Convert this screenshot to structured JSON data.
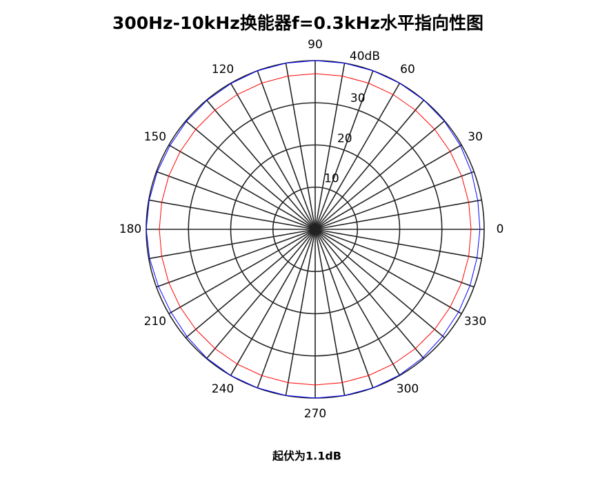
{
  "chart_data": {
    "type": "polar",
    "title": "300Hz-10kHz换能器f=0.3kHz水平指向性图",
    "annotation": "起伏为1.1dB",
    "x": [
      0,
      10,
      20,
      30,
      40,
      50,
      60,
      70,
      80,
      90,
      100,
      110,
      120,
      130,
      140,
      150,
      160,
      170,
      180,
      190,
      200,
      210,
      220,
      230,
      240,
      250,
      260,
      270,
      280,
      290,
      300,
      310,
      320,
      330,
      340,
      350,
      360
    ],
    "series": [
      {
        "color": "#ff0000",
        "values": [
          36.9,
          36.9,
          36.9,
          36.9,
          36.9,
          36.9,
          36.9,
          36.9,
          36.9,
          36.9,
          36.9,
          36.9,
          36.9,
          36.9,
          36.9,
          36.9,
          36.9,
          36.9,
          36.9,
          36.9,
          36.9,
          36.9,
          36.9,
          36.9,
          36.9,
          36.9,
          36.9,
          36.9,
          36.9,
          36.9,
          36.9,
          36.9,
          36.9,
          36.9,
          36.9,
          36.9,
          36.9
        ]
      },
      {
        "color": "#0000ff",
        "values": [
          39.0,
          39.1,
          39.4,
          39.7,
          39.9,
          40,
          40,
          40,
          40,
          40,
          40,
          40,
          39.9,
          39.9,
          39.8,
          39.7,
          39.8,
          39.9,
          40,
          39.8,
          39.5,
          39.4,
          39.6,
          39.9,
          40,
          40,
          40,
          40,
          40,
          40,
          39.9,
          39.7,
          39.4,
          39.2,
          39.0,
          38.9,
          39.0
        ]
      }
    ],
    "xticks": [
      0,
      30,
      60,
      90,
      120,
      150,
      180,
      210,
      240,
      270,
      300,
      330
    ],
    "angular_grid_step": 10,
    "ylim": [
      0,
      40
    ],
    "yticks": [
      10,
      20,
      30,
      {
        "value": 40,
        "label": "40dB"
      }
    ],
    "grid": true
  }
}
